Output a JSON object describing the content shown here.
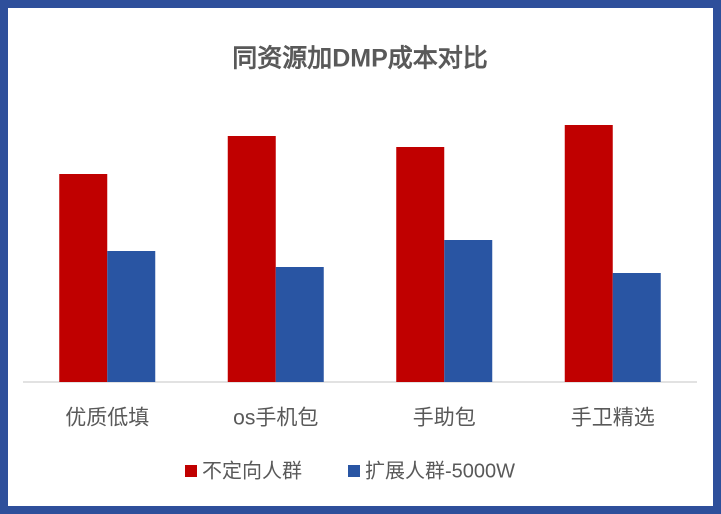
{
  "chart_data": {
    "type": "bar",
    "title": "同资源加DMP成本对比",
    "categories": [
      "优质低填",
      "os手机包",
      "手助包",
      "手卫精选"
    ],
    "series": [
      {
        "name": "不定向人群",
        "color": "#c00000",
        "values": [
          208,
          246,
          235,
          257
        ]
      },
      {
        "name": "扩展人群-5000W",
        "color": "#2955a3",
        "values": [
          131,
          115,
          142,
          109
        ]
      }
    ],
    "ylim": [
      0,
      300
    ],
    "legend": "bottom"
  }
}
